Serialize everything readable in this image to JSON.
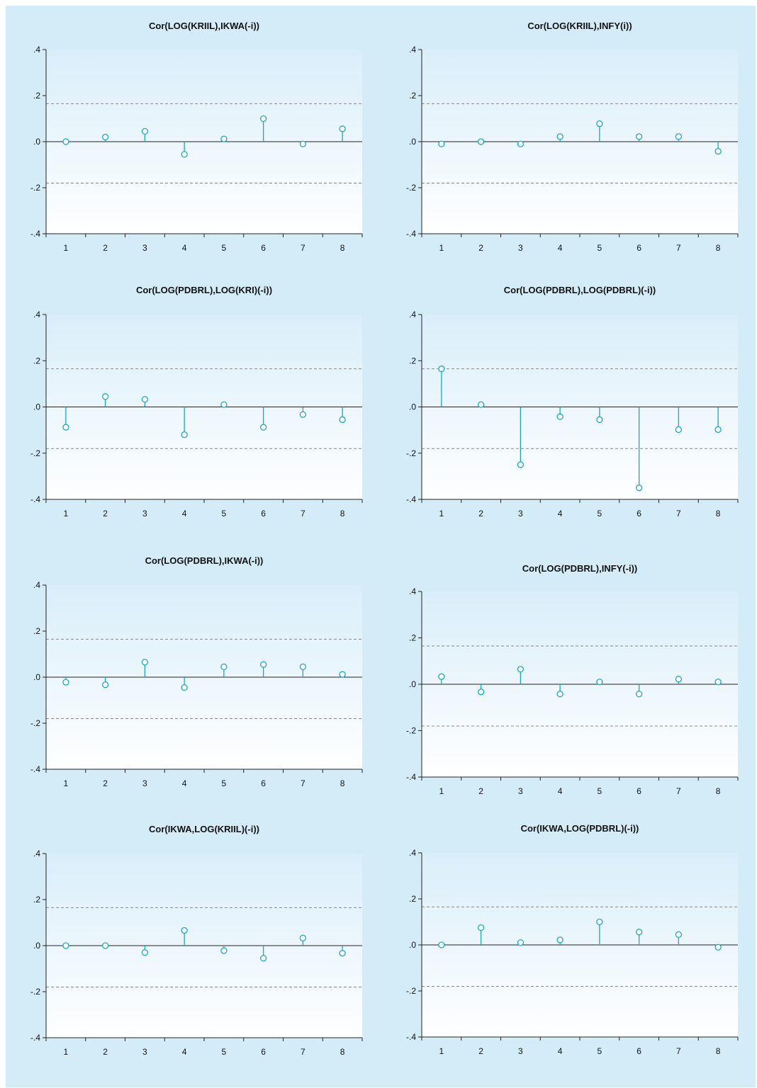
{
  "chart_data": [
    {
      "type": "line",
      "title": "Cor(LOG(KRIIL),IKWA(-i))",
      "x": [
        1,
        2,
        3,
        4,
        5,
        6,
        7,
        8
      ],
      "values": [
        0.0,
        0.02,
        0.045,
        -0.055,
        0.012,
        0.1,
        -0.01,
        0.056
      ],
      "yticks": [
        ".4",
        ".2",
        ".0",
        "-.2",
        "-.4"
      ],
      "ylim": [
        -0.4,
        0.4
      ],
      "bands": [
        0.165,
        -0.18
      ],
      "grid": false
    },
    {
      "type": "line",
      "title": "Cor(LOG(KRIIL),INFY(i))",
      "x": [
        1,
        2,
        3,
        4,
        5,
        6,
        7,
        8
      ],
      "values": [
        -0.01,
        0.0,
        -0.01,
        0.022,
        0.078,
        0.022,
        0.022,
        -0.042
      ],
      "yticks": [
        ".4",
        ".2",
        ".0",
        "-.2",
        "-.4"
      ],
      "ylim": [
        -0.4,
        0.4
      ],
      "bands": [
        0.165,
        -0.18
      ],
      "grid": false
    },
    {
      "type": "line",
      "title": "Cor(LOG(PDBRL),LOG(KRI)(-i))",
      "x": [
        1,
        2,
        3,
        4,
        5,
        6,
        7,
        8
      ],
      "values": [
        -0.088,
        0.045,
        0.033,
        -0.12,
        0.01,
        -0.088,
        -0.033,
        -0.055
      ],
      "yticks": [
        ".4",
        ".2",
        ".0",
        "-.2",
        "-.4"
      ],
      "ylim": [
        -0.4,
        0.4
      ],
      "bands": [
        0.165,
        -0.18
      ],
      "grid": false
    },
    {
      "type": "line",
      "title": "Cor(LOG(PDBRL),LOG(PDBRL)(-i))",
      "x": [
        1,
        2,
        3,
        4,
        5,
        6,
        7,
        8
      ],
      "values": [
        0.165,
        0.01,
        -0.25,
        -0.042,
        -0.055,
        -0.35,
        -0.098,
        -0.098
      ],
      "yticks": [
        ".4",
        ".2",
        ".0",
        "-.2",
        "-.4"
      ],
      "ylim": [
        -0.4,
        0.4
      ],
      "bands": [
        0.165,
        -0.18
      ],
      "grid": false
    },
    {
      "type": "line",
      "title": "Cor(LOG(PDBRL),IKWA(-i))",
      "x": [
        1,
        2,
        3,
        4,
        5,
        6,
        7,
        8
      ],
      "values": [
        -0.022,
        -0.033,
        0.065,
        -0.045,
        0.045,
        0.055,
        0.045,
        0.012
      ],
      "yticks": [
        ".4",
        ".2",
        ".0",
        "-.2",
        "-.4"
      ],
      "ylim": [
        -0.4,
        0.4
      ],
      "bands": [
        0.165,
        -0.18
      ],
      "grid": false
    },
    {
      "type": "line",
      "title": "Cor(LOG(PDBRL),INFY(-i))",
      "x": [
        1,
        2,
        3,
        4,
        5,
        6,
        7,
        8
      ],
      "values": [
        0.033,
        -0.033,
        0.065,
        -0.042,
        0.01,
        -0.042,
        0.022,
        0.01
      ],
      "yticks": [
        ".4",
        ".2",
        ".0",
        "-.2",
        "-.4"
      ],
      "ylim": [
        -0.4,
        0.4
      ],
      "bands": [
        0.165,
        -0.18
      ],
      "grid": false
    },
    {
      "type": "line",
      "title": "Cor(IKWA,LOG(KRIIL)(-i))",
      "x": [
        1,
        2,
        3,
        4,
        5,
        6,
        7,
        8
      ],
      "values": [
        0.0,
        0.0,
        -0.03,
        0.066,
        -0.022,
        -0.055,
        0.033,
        -0.033
      ],
      "yticks": [
        ".4",
        ".2",
        ".0",
        "-.2",
        "-.4"
      ],
      "ylim": [
        -0.4,
        0.4
      ],
      "bands": [
        0.165,
        -0.18
      ],
      "grid": false
    },
    {
      "type": "line",
      "title": "Cor(IKWA,LOG(PDBRL)(-i))",
      "x": [
        1,
        2,
        3,
        4,
        5,
        6,
        7,
        8
      ],
      "values": [
        0.0,
        0.075,
        0.01,
        0.022,
        0.1,
        0.056,
        0.045,
        -0.01
      ],
      "yticks": [
        ".4",
        ".2",
        ".0",
        "-.2",
        "-.4"
      ],
      "ylim": [
        -0.4,
        0.4
      ],
      "bands": [
        0.165,
        -0.18
      ],
      "grid": false
    }
  ],
  "colors": {
    "background": "#d4ecf8",
    "plot_top": "#d9eefa",
    "plot_bottom": "#ffffff",
    "stem": "#1aa7cc",
    "band": "#8a8a8a",
    "axis": "#222222"
  }
}
